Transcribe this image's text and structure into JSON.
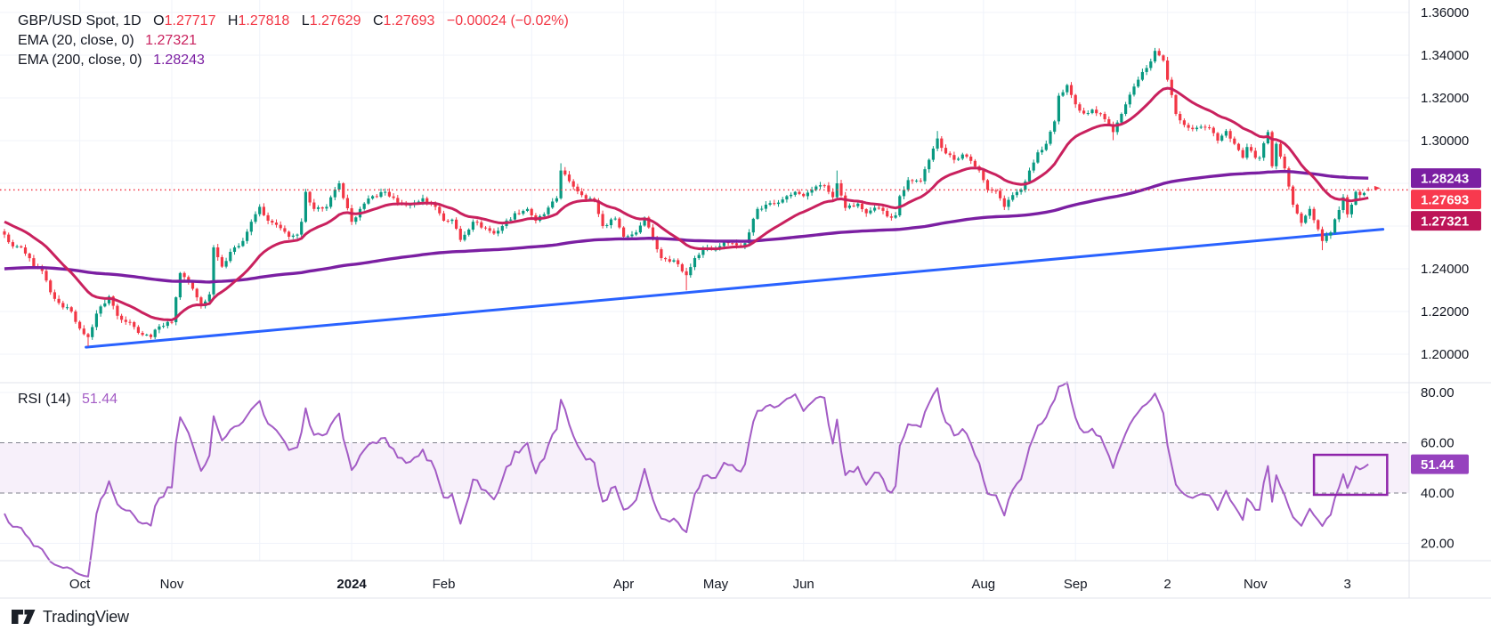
{
  "legend": {
    "title": "GBP/USD Spot, 1D",
    "ohlc": [
      {
        "k": "O",
        "v": "1.27717"
      },
      {
        "k": "H",
        "v": "1.27818"
      },
      {
        "k": "L",
        "v": "1.27629"
      },
      {
        "k": "C",
        "v": "1.27693"
      }
    ],
    "change": "−0.00024 (−0.02%)",
    "ema20_label": "EMA (20, close, 0)",
    "ema20_value": "1.27321",
    "ema200_label": "EMA (200, close, 0)",
    "ema200_value": "1.28243"
  },
  "rsi_legend": {
    "label": "RSI (14)",
    "value": "51.44"
  },
  "footer": {
    "brand": "TradingView"
  },
  "colors": {
    "up": "#089981",
    "down": "#f23645",
    "ema20": "#c9215e",
    "ema20_badge": "#bd1558",
    "ema200": "#7b1fa2",
    "last_badge": "#f8394e",
    "rsi_line": "#a35cc5",
    "rsi_badge": "#9642be",
    "trend": "#2962ff",
    "grid": "#f0f3fa",
    "dashed": "#6a6d78",
    "band_fill": "rgba(163,92,197,0.09)",
    "box": "#8e24aa",
    "text": "#131722",
    "sep": "#e0e3eb",
    "badge_text": "#ffffff"
  },
  "chart_data": {
    "type": "candlestick",
    "title": "GBP/USD Spot, 1D with EMA(20), EMA(200), RSI(14)",
    "bars": 327,
    "price_axis": {
      "min": 1.2,
      "max": 1.36,
      "step": 0.02,
      "ticks": [
        1.36,
        1.34,
        1.32,
        1.3,
        1.26,
        1.24,
        1.22,
        1.2
      ],
      "gridlines": [
        1.36,
        1.34,
        1.32,
        1.3,
        1.28,
        1.26,
        1.24,
        1.22,
        1.2
      ]
    },
    "time_ticks": [
      {
        "bar": 18,
        "label": "Oct"
      },
      {
        "bar": 40,
        "label": "Nov"
      },
      {
        "bar": 61,
        "label": ""
      },
      {
        "bar": 83,
        "label": "2024",
        "bold": true
      },
      {
        "bar": 105,
        "label": "Feb"
      },
      {
        "bar": 126,
        "label": ""
      },
      {
        "bar": 148,
        "label": "Apr"
      },
      {
        "bar": 170,
        "label": "May"
      },
      {
        "bar": 191,
        "label": "Jun"
      },
      {
        "bar": 213,
        "label": ""
      },
      {
        "bar": 234,
        "label": "Aug"
      },
      {
        "bar": 256,
        "label": "Sep"
      },
      {
        "bar": 278,
        "label": "2"
      },
      {
        "bar": 299,
        "label": "Nov"
      },
      {
        "bar": 321,
        "label": "3"
      }
    ],
    "close_keypoints": [
      [
        0,
        1.256
      ],
      [
        2,
        1.2505
      ],
      [
        4,
        1.25
      ],
      [
        7,
        1.241
      ],
      [
        9,
        1.239
      ],
      [
        11,
        1.229
      ],
      [
        13,
        1.224
      ],
      [
        16,
        1.22
      ],
      [
        18,
        1.212
      ],
      [
        20,
        1.208
      ],
      [
        22,
        1.219
      ],
      [
        25,
        1.227
      ],
      [
        27,
        1.218
      ],
      [
        30,
        1.215
      ],
      [
        32,
        1.21
      ],
      [
        35,
        1.208
      ],
      [
        37,
        1.213
      ],
      [
        40,
        1.215
      ],
      [
        42,
        1.238
      ],
      [
        44,
        1.234
      ],
      [
        47,
        1.2225
      ],
      [
        49,
        1.228
      ],
      [
        50,
        1.25
      ],
      [
        52,
        1.241
      ],
      [
        55,
        1.25
      ],
      [
        57,
        1.253
      ],
      [
        59,
        1.262
      ],
      [
        61,
        1.269
      ],
      [
        63,
        1.2625
      ],
      [
        66,
        1.259
      ],
      [
        68,
        1.255
      ],
      [
        70,
        1.256
      ],
      [
        71,
        1.262
      ],
      [
        72,
        1.276
      ],
      [
        74,
        1.268
      ],
      [
        77,
        1.269
      ],
      [
        80,
        1.28
      ],
      [
        81,
        1.2731
      ],
      [
        83,
        1.262
      ],
      [
        85,
        1.268
      ],
      [
        88,
        1.274
      ],
      [
        91,
        1.276
      ],
      [
        94,
        1.271
      ],
      [
        97,
        1.27
      ],
      [
        100,
        1.273
      ],
      [
        103,
        1.269
      ],
      [
        105,
        1.2625
      ],
      [
        107,
        1.263
      ],
      [
        109,
        1.2535
      ],
      [
        112,
        1.262
      ],
      [
        115,
        1.259
      ],
      [
        117,
        1.2565
      ],
      [
        119,
        1.26
      ],
      [
        122,
        1.266
      ],
      [
        125,
        1.268
      ],
      [
        127,
        1.2625
      ],
      [
        129,
        1.2655
      ],
      [
        132,
        1.273
      ],
      [
        133,
        1.286
      ],
      [
        135,
        1.281
      ],
      [
        138,
        1.2745
      ],
      [
        141,
        1.272
      ],
      [
        143,
        1.26
      ],
      [
        146,
        1.2635
      ],
      [
        148,
        1.255
      ],
      [
        151,
        1.257
      ],
      [
        153,
        1.264
      ],
      [
        155,
        1.254
      ],
      [
        157,
        1.245
      ],
      [
        160,
        1.244
      ],
      [
        163,
        1.237
      ],
      [
        165,
        1.245
      ],
      [
        167,
        1.2495
      ],
      [
        170,
        1.249
      ],
      [
        172,
        1.2525
      ],
      [
        175,
        1.251
      ],
      [
        177,
        1.252
      ],
      [
        180,
        1.268
      ],
      [
        182,
        1.27
      ],
      [
        185,
        1.271
      ],
      [
        187,
        1.274
      ],
      [
        189,
        1.276
      ],
      [
        191,
        1.274
      ],
      [
        193,
        1.277
      ],
      [
        196,
        1.279
      ],
      [
        198,
        1.2735
      ],
      [
        199,
        1.28
      ],
      [
        201,
        1.2685
      ],
      [
        204,
        1.2705
      ],
      [
        206,
        1.266
      ],
      [
        209,
        1.2685
      ],
      [
        211,
        1.2645
      ],
      [
        213,
        1.265
      ],
      [
        214,
        1.274
      ],
      [
        216,
        1.2815
      ],
      [
        219,
        1.281
      ],
      [
        221,
        1.291
      ],
      [
        223,
        1.301
      ],
      [
        225,
        1.294
      ],
      [
        227,
        1.291
      ],
      [
        229,
        1.2935
      ],
      [
        231,
        1.2905
      ],
      [
        233,
        1.286
      ],
      [
        235,
        1.277
      ],
      [
        237,
        1.2765
      ],
      [
        239,
        1.269
      ],
      [
        241,
        1.2745
      ],
      [
        243,
        1.277
      ],
      [
        245,
        1.286
      ],
      [
        247,
        1.2945
      ],
      [
        249,
        1.2985
      ],
      [
        251,
        1.309
      ],
      [
        252,
        1.321
      ],
      [
        254,
        1.326
      ],
      [
        256,
        1.317
      ],
      [
        258,
        1.3127
      ],
      [
        260,
        1.3145
      ],
      [
        262,
        1.3125
      ],
      [
        264,
        1.3075
      ],
      [
        265,
        1.304
      ],
      [
        267,
        1.3125
      ],
      [
        269,
        1.3215
      ],
      [
        271,
        1.3285
      ],
      [
        273,
        1.334
      ],
      [
        275,
        1.342
      ],
      [
        277,
        1.3375
      ],
      [
        278,
        1.3285
      ],
      [
        280,
        1.3125
      ],
      [
        283,
        1.306
      ],
      [
        286,
        1.3065
      ],
      [
        288,
        1.306
      ],
      [
        290,
        1.3
      ],
      [
        292,
        1.3045
      ],
      [
        294,
        1.2985
      ],
      [
        296,
        1.292
      ],
      [
        297,
        1.297
      ],
      [
        299,
        1.292
      ],
      [
        300,
        1.292
      ],
      [
        302,
        1.304
      ],
      [
        303,
        1.288
      ],
      [
        304,
        1.2985
      ],
      [
        306,
        1.287
      ],
      [
        308,
        1.27
      ],
      [
        310,
        1.2615
      ],
      [
        312,
        1.268
      ],
      [
        314,
        1.2585
      ],
      [
        315,
        1.253
      ],
      [
        317,
        1.257
      ],
      [
        319,
        1.2675
      ],
      [
        320,
        1.2735
      ],
      [
        321,
        1.2655
      ],
      [
        322,
        1.27
      ],
      [
        323,
        1.276
      ],
      [
        324,
        1.2745
      ],
      [
        325,
        1.2755
      ],
      [
        326,
        1.27693
      ]
    ],
    "wick_overrides": {
      "20": {
        "low": 1.2037
      },
      "35": {
        "low": 1.207
      },
      "133": {
        "high": 1.2894
      },
      "163": {
        "low": 1.2299
      },
      "199": {
        "high": 1.286
      },
      "223": {
        "high": 1.3045
      },
      "254": {
        "high": 1.3266
      },
      "265": {
        "low": 1.3002
      },
      "275": {
        "high": 1.3434
      },
      "302": {
        "high": 1.3048
      },
      "315": {
        "low": 1.2487
      }
    },
    "last_candle": {
      "open": 1.27717,
      "high": 1.27818,
      "low": 1.27629,
      "close": 1.27693
    },
    "last_price": 1.27693,
    "ema20": {
      "period": 20,
      "seed": 1.262,
      "end": 1.27321
    },
    "ema200": {
      "period": 200,
      "seed": 1.24,
      "end": 1.28243
    },
    "trendline": {
      "bar1": 19.5,
      "price1": 1.2033,
      "bar2": 329.5,
      "price2": 1.2585
    },
    "rsi": {
      "period": 14,
      "seed_gain": 0.0007,
      "seed_loss": 0.0015,
      "end": 51.44,
      "band": [
        40,
        60
      ],
      "ticks": [
        80,
        60,
        40,
        20
      ],
      "box": {
        "bar1": 313,
        "bar2": 330.5,
        "v1": 39.3,
        "v2": 55.2
      }
    },
    "price_badges": [
      {
        "text": "1.28243",
        "price": 1.28243,
        "color_key": "ema200"
      },
      {
        "text": "1.27693",
        "price": 1.27693,
        "color_key": "last_badge"
      },
      {
        "text": "1.27321",
        "price": 1.27321,
        "color_key": "ema20_badge"
      }
    ],
    "rsi_badge": {
      "text": "51.44",
      "value": 51.44
    }
  }
}
